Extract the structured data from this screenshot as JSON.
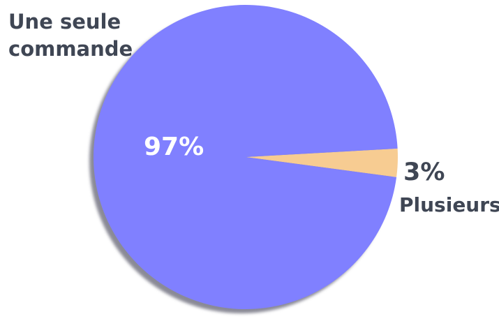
{
  "chart_data": {
    "type": "pie",
    "slices": [
      {
        "label": "Une seule commande",
        "value": 97,
        "value_label": "97%",
        "color": "#8080ff"
      },
      {
        "label": "Plusieurs",
        "value": 3,
        "value_label": "3%",
        "color": "#f7cc92"
      }
    ],
    "shadow_color": "#8a8a96",
    "grid": false,
    "legend": "none"
  }
}
